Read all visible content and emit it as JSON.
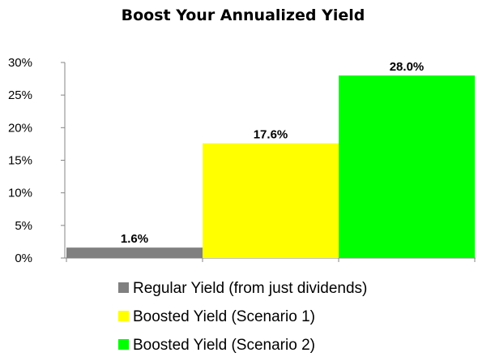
{
  "chart_data": {
    "type": "bar",
    "title": "Boost Your Annualized Yield",
    "categories": [
      "Regular Yield (from just dividends)",
      "Boosted Yield (Scenario 1)",
      "Boosted Yield (Scenario 2)"
    ],
    "values": [
      1.6,
      17.6,
      28.0
    ],
    "value_labels": [
      "1.6%",
      "17.6%",
      "28.0%"
    ],
    "colors": [
      "#808080",
      "#ffff00",
      "#00ff00"
    ],
    "yticks": [
      "0%",
      "5%",
      "10%",
      "15%",
      "20%",
      "25%",
      "30%"
    ],
    "ylim": [
      0,
      30
    ],
    "grid": false,
    "legend_position": "bottom"
  }
}
